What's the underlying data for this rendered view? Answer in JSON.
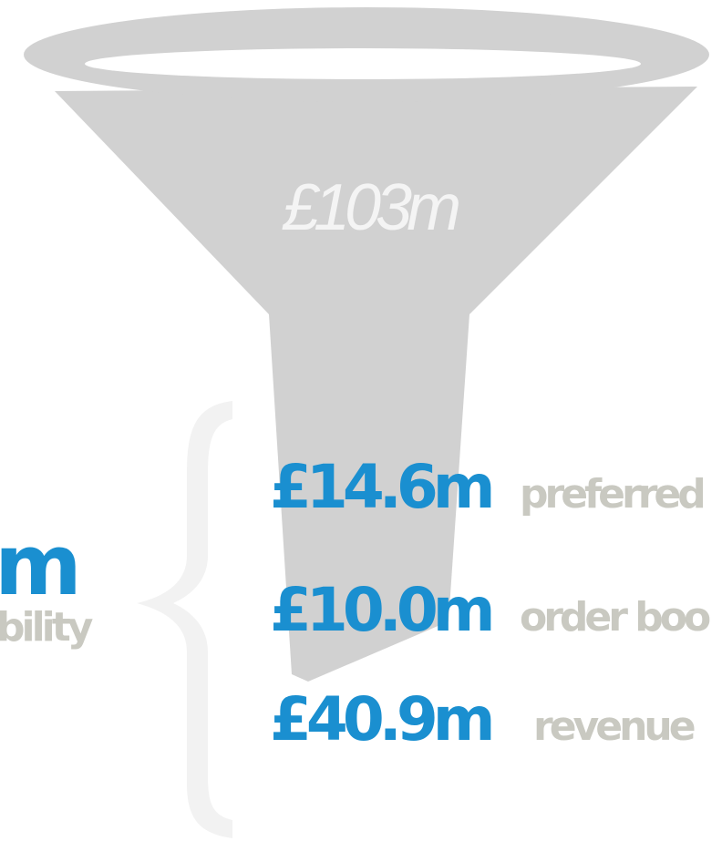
{
  "funnel": {
    "total": "£103m"
  },
  "items": [
    {
      "amount": "£14.6m",
      "label": "preferred"
    },
    {
      "amount": "£10.0m",
      "label": "order boo"
    },
    {
      "amount": "£40.9m",
      "label": "revenue"
    }
  ],
  "left": {
    "amount": "m",
    "label": "bility"
  }
}
